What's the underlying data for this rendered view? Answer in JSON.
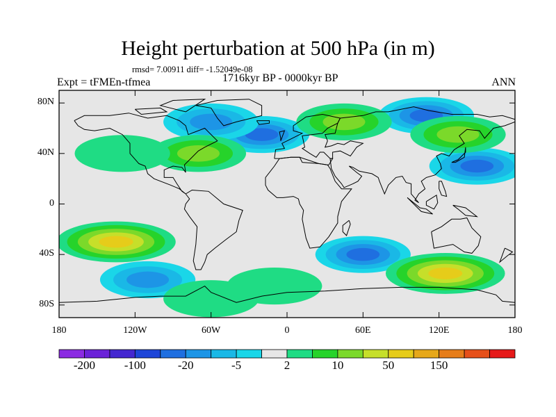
{
  "header": {
    "title": "Height perturbation at 500 hPa (in m)",
    "stats": "rmsd= 7.00911 diff= -1.52049e-08",
    "experiment": "Expt = tFMEn-tfmea",
    "period": "1716kyr BP - 0000kyr BP",
    "season": "ANN"
  },
  "map": {
    "projection": "cylindrical-equidistant",
    "lon_range": [
      -180,
      180
    ],
    "lat_range": [
      -90,
      90
    ],
    "lat_ticks": [
      {
        "value": 80,
        "label": "80N"
      },
      {
        "value": 40,
        "label": "40N"
      },
      {
        "value": 0,
        "label": "0"
      },
      {
        "value": -40,
        "label": "40S"
      },
      {
        "value": -80,
        "label": "80S"
      }
    ],
    "lon_ticks": [
      {
        "value": -180,
        "label": "180"
      },
      {
        "value": -120,
        "label": "120W"
      },
      {
        "value": -60,
        "label": "60W"
      },
      {
        "value": 0,
        "label": "0"
      },
      {
        "value": 60,
        "label": "60E"
      },
      {
        "value": 120,
        "label": "120E"
      },
      {
        "value": 180,
        "label": "180"
      }
    ],
    "background_color": "#e6e6e6"
  },
  "chart_data": {
    "type": "heatmap",
    "title": "Height perturbation at 500 hPa (in m)",
    "variable": "500 hPa geopotential height difference",
    "units": "m",
    "features": [
      {
        "kind": "low",
        "lon": -20,
        "lat": 55,
        "peak": -20
      },
      {
        "kind": "low",
        "lon": -60,
        "lat": 65,
        "peak": -5
      },
      {
        "kind": "low",
        "lon": 150,
        "lat": 30,
        "peak": -20
      },
      {
        "kind": "low",
        "lon": 110,
        "lat": 70,
        "peak": -20
      },
      {
        "kind": "low",
        "lon": 60,
        "lat": -40,
        "peak": -20
      },
      {
        "kind": "low",
        "lon": -110,
        "lat": -60,
        "peak": -5
      },
      {
        "kind": "high",
        "lon": 45,
        "lat": 65,
        "peak": 10
      },
      {
        "kind": "high",
        "lon": -70,
        "lat": 40,
        "peak": 10
      },
      {
        "kind": "high",
        "lon": 135,
        "lat": 55,
        "peak": 10
      },
      {
        "kind": "high",
        "lon": -130,
        "lat": 40,
        "peak": 2
      },
      {
        "kind": "high",
        "lon": -135,
        "lat": -30,
        "peak": 50
      },
      {
        "kind": "high",
        "lon": 125,
        "lat": -55,
        "peak": 50
      },
      {
        "kind": "high",
        "lon": -60,
        "lat": -75,
        "peak": 2
      },
      {
        "kind": "high",
        "lon": -10,
        "lat": -65,
        "peak": 2
      }
    ],
    "colorbar": {
      "labels": [
        "-200",
        "-100",
        "-20",
        "-5",
        "2",
        "10",
        "50",
        "150"
      ],
      "colors": [
        "#8b2be2",
        "#6b22d8",
        "#4427d0",
        "#1d45d8",
        "#1f6fe0",
        "#1d95e6",
        "#1ab8e6",
        "#1ad6e8",
        "#e6e6e6",
        "#1fdc84",
        "#26d32a",
        "#7bd92a",
        "#c6df2a",
        "#e6cc1a",
        "#e6a81a",
        "#e67d1a",
        "#e6501a",
        "#e61a1a"
      ]
    }
  }
}
